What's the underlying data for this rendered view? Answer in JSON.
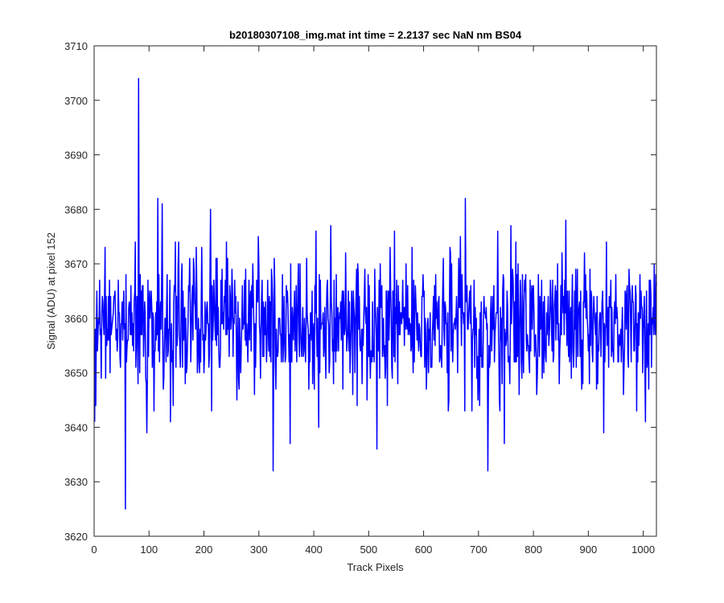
{
  "chart_data": {
    "type": "line",
    "title": "b20180307108_img.mat int time = 2.2137 sec  NaN nm BS04",
    "xlabel": "Track Pixels",
    "ylabel": "Signal (ADU) at pixel 152",
    "xlim": [
      0,
      1024
    ],
    "ylim": [
      3620,
      3710
    ],
    "xticks": [
      0,
      100,
      200,
      300,
      400,
      500,
      600,
      700,
      800,
      900,
      1000
    ],
    "yticks": [
      3620,
      3630,
      3640,
      3650,
      3660,
      3670,
      3680,
      3690,
      3700,
      3710
    ],
    "grid": false,
    "series": [
      {
        "color": "#0000ff",
        "seed": 20180307,
        "mean": 3659,
        "std": 6.5,
        "min": 3625,
        "max": 3704,
        "n_points": 1024,
        "notable_points": [
          {
            "x": 1,
            "y": 3641
          },
          {
            "x": 57,
            "y": 3625
          },
          {
            "x": 81,
            "y": 3704
          },
          {
            "x": 116,
            "y": 3682
          },
          {
            "x": 124,
            "y": 3681
          },
          {
            "x": 212,
            "y": 3680
          },
          {
            "x": 326,
            "y": 3632
          },
          {
            "x": 547,
            "y": 3676
          },
          {
            "x": 515,
            "y": 3636
          },
          {
            "x": 676,
            "y": 3682
          },
          {
            "x": 717,
            "y": 3632
          },
          {
            "x": 735,
            "y": 3676
          },
          {
            "x": 859,
            "y": 3678
          },
          {
            "x": 928,
            "y": 3639
          },
          {
            "x": 1004,
            "y": 3641
          }
        ]
      }
    ]
  }
}
